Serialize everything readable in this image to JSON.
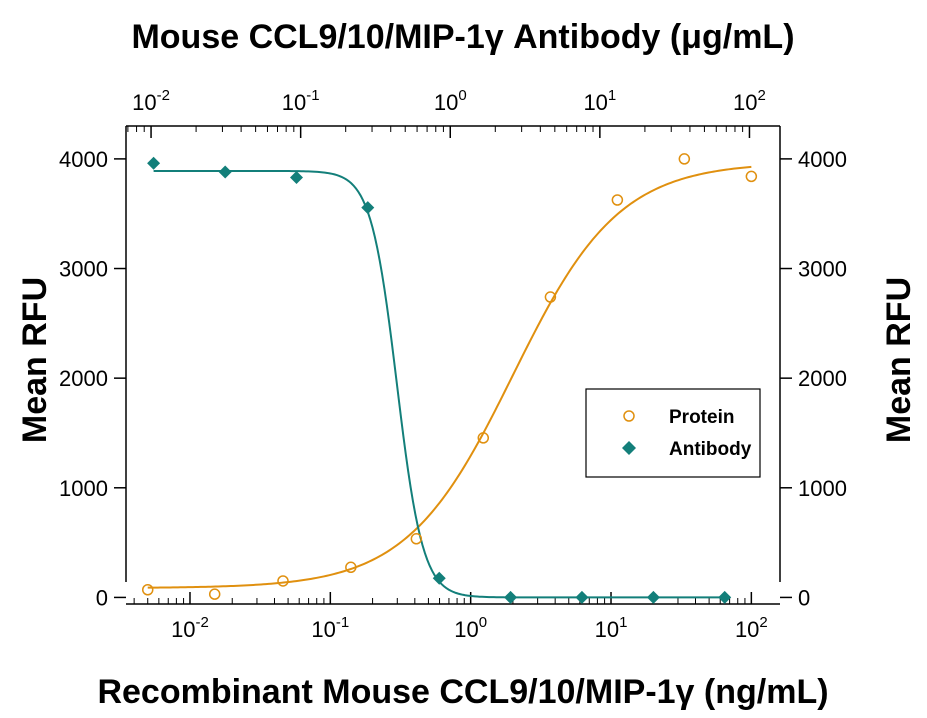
{
  "chart_data": {
    "type": "scatter",
    "title_top": "Mouse CCL9/10/MIP-1γ Antibody (μg/mL)",
    "xlabel": "Recombinant Mouse CCL9/10/MIP-1γ (ng/mL)",
    "ylabel_left": "Mean RFU",
    "ylabel_right": "Mean RFU",
    "x_scale": "log",
    "xlim_bottom": [
      0.0035,
      160
    ],
    "xlim_top": [
      0.0068,
      160
    ],
    "ylim": [
      -60,
      4300
    ],
    "yticks": [
      0,
      1000,
      2000,
      3000,
      4000
    ],
    "xticks_bottom": [
      {
        "value": 0.01,
        "base": "10",
        "exp": "-2"
      },
      {
        "value": 0.1,
        "base": "10",
        "exp": "-1"
      },
      {
        "value": 1,
        "base": "10",
        "exp": "0"
      },
      {
        "value": 10,
        "base": "10",
        "exp": "1"
      },
      {
        "value": 100,
        "base": "10",
        "exp": "2"
      }
    ],
    "xticks_top": [
      {
        "value": 0.01,
        "base": "10",
        "exp": "-2"
      },
      {
        "value": 0.1,
        "base": "10",
        "exp": "-1"
      },
      {
        "value": 1,
        "base": "10",
        "exp": "0"
      },
      {
        "value": 10,
        "base": "10",
        "exp": "1"
      },
      {
        "value": 100,
        "base": "10",
        "exp": "2"
      }
    ],
    "grid": false,
    "legend_position": "center-right",
    "series": [
      {
        "name": "Protein",
        "marker": "open-circle",
        "color": "#e0900f",
        "axis": "bottom",
        "points": [
          {
            "x": 0.005,
            "y": 70
          },
          {
            "x": 0.015,
            "y": 30
          },
          {
            "x": 0.046,
            "y": 150
          },
          {
            "x": 0.14,
            "y": 275
          },
          {
            "x": 0.41,
            "y": 535
          },
          {
            "x": 1.23,
            "y": 1455
          },
          {
            "x": 3.7,
            "y": 2740
          },
          {
            "x": 11.1,
            "y": 3625
          },
          {
            "x": 33.3,
            "y": 4000
          },
          {
            "x": 100,
            "y": 3840
          }
        ],
        "fit": {
          "bottom": 85,
          "top": 3970,
          "ec50": 2.0,
          "hill": 1.15
        }
      },
      {
        "name": "Antibody",
        "marker": "filled-diamond",
        "color": "#137f7a",
        "axis": "top",
        "points": [
          {
            "x": 0.0104,
            "y": 3960
          },
          {
            "x": 0.0313,
            "y": 3880
          },
          {
            "x": 0.0938,
            "y": 3830
          },
          {
            "x": 0.281,
            "y": 3555
          },
          {
            "x": 0.844,
            "y": 175
          },
          {
            "x": 2.53,
            "y": 0
          },
          {
            "x": 7.59,
            "y": 0
          },
          {
            "x": 22.8,
            "y": 0
          },
          {
            "x": 68.3,
            "y": 0
          }
        ],
        "fit": {
          "bottom": 0,
          "top": 3890,
          "ec50": 0.44,
          "hill": -5.0
        }
      }
    ]
  }
}
